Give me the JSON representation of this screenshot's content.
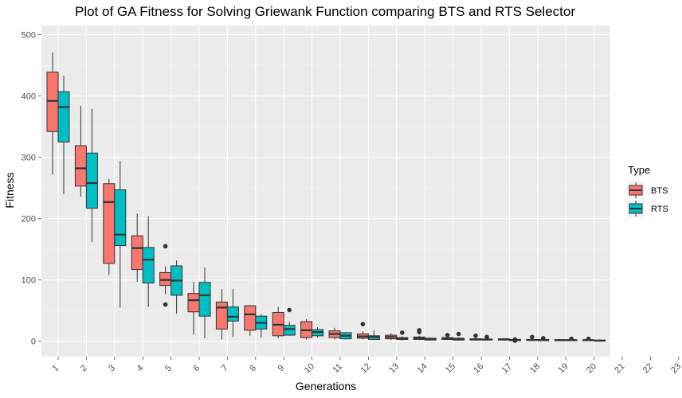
{
  "chart_data": {
    "type": "boxplot",
    "title": "Plot of GA Fitness for Solving Griewank Function comparing BTS and RTS Selector",
    "xlabel": "Generations",
    "ylabel": "Fitness",
    "ylim": [
      -25,
      515
    ],
    "yticks": [
      0,
      100,
      200,
      300,
      400,
      500
    ],
    "categories": [
      "1",
      "2",
      "3",
      "4",
      "5",
      "6",
      "7",
      "8",
      "9",
      "10",
      "11",
      "12",
      "13",
      "14",
      "15",
      "16",
      "17",
      "18",
      "19",
      "20",
      "21",
      "22",
      "23"
    ],
    "legend": {
      "title": "Type",
      "position": "right"
    },
    "grid": true,
    "series": [
      {
        "name": "BTS",
        "color": "#f8766d",
        "boxes": [
          {
            "x": "1",
            "min": 272,
            "q1": 342,
            "median": 392,
            "q3": 439,
            "max": 471,
            "outliers": []
          },
          {
            "x": "2",
            "min": 236,
            "q1": 253,
            "median": 282,
            "q3": 319,
            "max": 384,
            "outliers": []
          },
          {
            "x": "3",
            "min": 108,
            "q1": 127,
            "median": 227,
            "q3": 257,
            "max": 265,
            "outliers": []
          },
          {
            "x": "4",
            "min": 97,
            "q1": 117,
            "median": 152,
            "q3": 172,
            "max": 208,
            "outliers": []
          },
          {
            "x": "5",
            "min": 77,
            "q1": 91,
            "median": 100,
            "q3": 112,
            "max": 122,
            "outliers": [
              155,
              60
            ]
          },
          {
            "x": "6",
            "min": 11,
            "q1": 48,
            "median": 67,
            "q3": 78,
            "max": 97,
            "outliers": []
          },
          {
            "x": "7",
            "min": 3,
            "q1": 20,
            "median": 55,
            "q3": 64,
            "max": 85,
            "outliers": []
          },
          {
            "x": "8",
            "min": 9,
            "q1": 18,
            "median": 44,
            "q3": 58,
            "max": 59,
            "outliers": []
          },
          {
            "x": "9",
            "min": 5,
            "q1": 9,
            "median": 27,
            "q3": 47,
            "max": 56,
            "outliers": []
          },
          {
            "x": "10",
            "min": 3,
            "q1": 6,
            "median": 18,
            "q3": 32,
            "max": 36,
            "outliers": []
          },
          {
            "x": "11",
            "min": 3,
            "q1": 6,
            "median": 12,
            "q3": 17,
            "max": 22,
            "outliers": []
          },
          {
            "x": "12",
            "min": 3,
            "q1": 5,
            "median": 8,
            "q3": 12,
            "max": 16,
            "outliers": [
              28
            ]
          },
          {
            "x": "13",
            "min": 2,
            "q1": 4,
            "median": 7,
            "q3": 10,
            "max": 13,
            "outliers": []
          },
          {
            "x": "14",
            "min": 2,
            "q1": 3,
            "median": 5,
            "q3": 7,
            "max": 9,
            "outliers": [
              18,
              15
            ]
          },
          {
            "x": "15",
            "min": 2,
            "q1": 3,
            "median": 4,
            "q3": 6,
            "max": 7,
            "outliers": [
              10
            ]
          },
          {
            "x": "16",
            "min": 1,
            "q1": 2,
            "median": 3,
            "q3": 4,
            "max": 6,
            "outliers": [
              9
            ]
          },
          {
            "x": "17",
            "min": 1,
            "q1": 2,
            "median": 3,
            "q3": 4,
            "max": 5,
            "outliers": []
          },
          {
            "x": "18",
            "min": 1,
            "q1": 2,
            "median": 2,
            "q3": 3,
            "max": 4,
            "outliers": [
              7
            ]
          },
          {
            "x": "19",
            "min": 1,
            "q1": 1,
            "median": 2,
            "q3": 2,
            "max": 3,
            "outliers": []
          },
          {
            "x": "20",
            "min": 1,
            "q1": 1,
            "median": 2,
            "q3": 2,
            "max": 3,
            "outliers": [
              4
            ]
          }
        ]
      },
      {
        "name": "RTS",
        "color": "#00bfc4",
        "boxes": [
          {
            "x": "1",
            "min": 240,
            "q1": 325,
            "median": 382,
            "q3": 407,
            "max": 433,
            "outliers": []
          },
          {
            "x": "2",
            "min": 162,
            "q1": 217,
            "median": 258,
            "q3": 307,
            "max": 379,
            "outliers": []
          },
          {
            "x": "3",
            "min": 55,
            "q1": 156,
            "median": 174,
            "q3": 247,
            "max": 294,
            "outliers": []
          },
          {
            "x": "4",
            "min": 56,
            "q1": 95,
            "median": 133,
            "q3": 153,
            "max": 204,
            "outliers": []
          },
          {
            "x": "5",
            "min": 45,
            "q1": 75,
            "median": 99,
            "q3": 123,
            "max": 132,
            "outliers": []
          },
          {
            "x": "6",
            "min": 5,
            "q1": 41,
            "median": 75,
            "q3": 96,
            "max": 120,
            "outliers": []
          },
          {
            "x": "7",
            "min": 7,
            "q1": 33,
            "median": 40,
            "q3": 56,
            "max": 85,
            "outliers": []
          },
          {
            "x": "8",
            "min": 6,
            "q1": 20,
            "median": 30,
            "q3": 41,
            "max": 44,
            "outliers": []
          },
          {
            "x": "9",
            "min": 9,
            "q1": 10,
            "median": 20,
            "q3": 26,
            "max": 32,
            "outliers": [
              51
            ]
          },
          {
            "x": "10",
            "min": 6,
            "q1": 9,
            "median": 15,
            "q3": 19,
            "max": 23,
            "outliers": []
          },
          {
            "x": "11",
            "min": 3,
            "q1": 4,
            "median": 9,
            "q3": 14,
            "max": 15,
            "outliers": []
          },
          {
            "x": "12",
            "min": 2,
            "q1": 3,
            "median": 7,
            "q3": 9,
            "max": 18,
            "outliers": []
          },
          {
            "x": "13",
            "min": 1,
            "q1": 3,
            "median": 4,
            "q3": 6,
            "max": 8,
            "outliers": [
              14
            ]
          },
          {
            "x": "14",
            "min": 1,
            "q1": 2,
            "median": 4,
            "q3": 5,
            "max": 6,
            "outliers": []
          },
          {
            "x": "15",
            "min": 1,
            "q1": 2,
            "median": 3,
            "q3": 5,
            "max": 6,
            "outliers": [
              12
            ]
          },
          {
            "x": "16",
            "min": 1,
            "q1": 2,
            "median": 3,
            "q3": 3,
            "max": 4,
            "outliers": [
              7
            ]
          },
          {
            "x": "17",
            "min": 1,
            "q1": 1,
            "median": 2,
            "q3": 3,
            "max": 4,
            "outliers": [
              1,
              3
            ]
          },
          {
            "x": "18",
            "min": 1,
            "q1": 1,
            "median": 2,
            "q3": 3,
            "max": 4,
            "outliers": [
              5
            ]
          },
          {
            "x": "19",
            "min": 1,
            "q1": 1,
            "median": 2,
            "q3": 2,
            "max": 3,
            "outliers": [
              4
            ]
          },
          {
            "x": "20",
            "min": 0,
            "q1": 1,
            "median": 1,
            "q3": 2,
            "max": 3,
            "outliers": []
          }
        ]
      }
    ]
  }
}
